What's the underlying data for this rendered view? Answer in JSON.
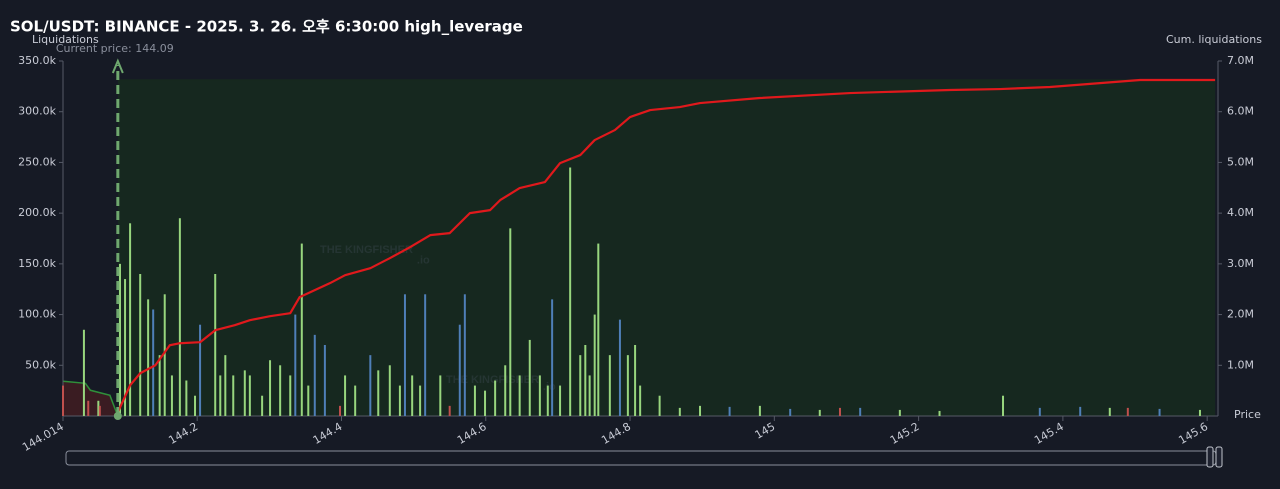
{
  "chart_data": {
    "type": "combo",
    "title": "SOL/USDT: BINANCE - 2025. 3. 26. 오후 6:30:00 high_leverage",
    "y_label": "Liquidations",
    "y2_label": "Cum. liquidations",
    "x_label": "Price",
    "current_price": {
      "value": 144.09,
      "label": "Current price: 144.09",
      "color": "#6fa86f"
    },
    "watermark": {
      "text": "THE KINGFISHER",
      "suffix": ".io"
    },
    "xlim": [
      144.014,
      145.615
    ],
    "xticks": [
      144.014,
      144.2,
      144.4,
      144.6,
      144.8,
      145,
      145.2,
      145.4,
      145.6
    ],
    "ylim": [
      0,
      350000
    ],
    "yticks": [
      {
        "value": 50000,
        "label": "50.0k"
      },
      {
        "value": 100000,
        "label": "100.0k"
      },
      {
        "value": 150000,
        "label": "150.0k"
      },
      {
        "value": 200000,
        "label": "200.0k"
      },
      {
        "value": 250000,
        "label": "250.0k"
      },
      {
        "value": 300000,
        "label": "300.0k"
      },
      {
        "value": 350000,
        "label": "350.0k"
      }
    ],
    "y2lim": [
      0,
      7000000
    ],
    "y2ticks": [
      {
        "value": 1000000,
        "label": "1.0M"
      },
      {
        "value": 2000000,
        "label": "2.0M"
      },
      {
        "value": 3000000,
        "label": "3.0M"
      },
      {
        "value": 4000000,
        "label": "4.0M"
      },
      {
        "value": 5000000,
        "label": "5.0M"
      },
      {
        "value": 6000000,
        "label": "6.0M"
      },
      {
        "value": 7000000,
        "label": "7.0M"
      }
    ],
    "grid": false,
    "series": [
      {
        "type": "area",
        "axis": "y2",
        "color": "#16281f",
        "fill": "#16281f",
        "x": [
          144.09,
          145.611
        ],
        "values": [
          6625000,
          6625000
        ]
      },
      {
        "type": "area",
        "axis": "y2",
        "color": "#2f8f3a",
        "fill": "#3a1c22",
        "x": [
          144.014,
          144.045,
          144.052,
          144.079,
          144.09
        ],
        "values": [
          685000,
          645000,
          507000,
          408000,
          0
        ]
      },
      {
        "type": "bar",
        "color": "#98d67e",
        "x": [
          144.043,
          144.063,
          144.093,
          144.1,
          144.107,
          144.121,
          144.132,
          144.148,
          144.155,
          144.165,
          144.176,
          144.185,
          144.197,
          144.225,
          144.232,
          144.239,
          144.25,
          144.266,
          144.273,
          144.29,
          144.301,
          144.315,
          144.329,
          144.345,
          144.354,
          144.405,
          144.419,
          144.451,
          144.467,
          144.481,
          144.498,
          144.509,
          144.537,
          144.585,
          144.599,
          144.613,
          144.627,
          144.634,
          144.647,
          144.661,
          144.675,
          144.686,
          144.703,
          144.717,
          144.731,
          144.738,
          144.744,
          144.751,
          144.756,
          144.772,
          144.797,
          144.807,
          144.814,
          144.841,
          144.869,
          144.897,
          144.98,
          145.063,
          145.174,
          145.229,
          145.317,
          145.465,
          145.59
        ],
        "values": [
          85000,
          15000,
          150000,
          135000,
          190000,
          140000,
          115000,
          60000,
          120000,
          40000,
          195000,
          35000,
          20000,
          140000,
          40000,
          60000,
          40000,
          45000,
          40000,
          20000,
          55000,
          50000,
          40000,
          170000,
          30000,
          40000,
          30000,
          45000,
          50000,
          30000,
          40000,
          30000,
          40000,
          30000,
          25000,
          35000,
          50000,
          185000,
          40000,
          75000,
          40000,
          30000,
          30000,
          245000,
          60000,
          70000,
          40000,
          100000,
          170000,
          60000,
          60000,
          70000,
          30000,
          20000,
          8000,
          10000,
          10000,
          6000,
          6000,
          5000,
          20000,
          8000,
          6000
        ]
      },
      {
        "type": "bar",
        "color": "#4f7fb8",
        "x": [
          144.139,
          144.204,
          144.336,
          144.363,
          144.377,
          144.44,
          144.488,
          144.516,
          144.564,
          144.571,
          144.692,
          144.786,
          144.938,
          145.022,
          145.119,
          145.368,
          145.424,
          145.534
        ],
        "values": [
          105000,
          90000,
          100000,
          80000,
          70000,
          60000,
          120000,
          120000,
          90000,
          120000,
          115000,
          95000,
          9000,
          7000,
          8000,
          8000,
          9000,
          7000
        ]
      },
      {
        "type": "bar",
        "color": "#c0504d",
        "x": [
          144.014,
          144.049,
          144.065,
          144.398,
          144.55,
          145.091,
          145.49
        ],
        "values": [
          30000,
          15000,
          10000,
          10000,
          10000,
          8000,
          8000
        ]
      },
      {
        "type": "line",
        "axis": "y2",
        "color": "#e0191c",
        "x": [
          144.09,
          144.107,
          144.121,
          144.142,
          144.162,
          144.176,
          144.204,
          144.225,
          144.252,
          144.273,
          144.301,
          144.329,
          144.342,
          144.363,
          144.384,
          144.405,
          144.44,
          144.467,
          144.495,
          144.523,
          144.55,
          144.578,
          144.606,
          144.62,
          144.647,
          144.682,
          144.703,
          144.731,
          144.751,
          144.779,
          144.8,
          144.828,
          144.869,
          144.897,
          144.98,
          145.105,
          145.243,
          145.313,
          145.382,
          145.507,
          145.611
        ],
        "values": [
          73000,
          606000,
          843000,
          1000000,
          1395000,
          1435000,
          1455000,
          1691000,
          1790000,
          1889000,
          1968000,
          2027000,
          2343000,
          2481000,
          2619000,
          2777000,
          2915000,
          3112000,
          3329000,
          3566000,
          3606000,
          4000000,
          4060000,
          4257000,
          4494000,
          4612000,
          4987000,
          5145000,
          5441000,
          5638000,
          5895000,
          6033000,
          6092000,
          6171000,
          6270000,
          6368000,
          6428000,
          6447000,
          6487000,
          6625000,
          6625000
        ]
      }
    ]
  }
}
